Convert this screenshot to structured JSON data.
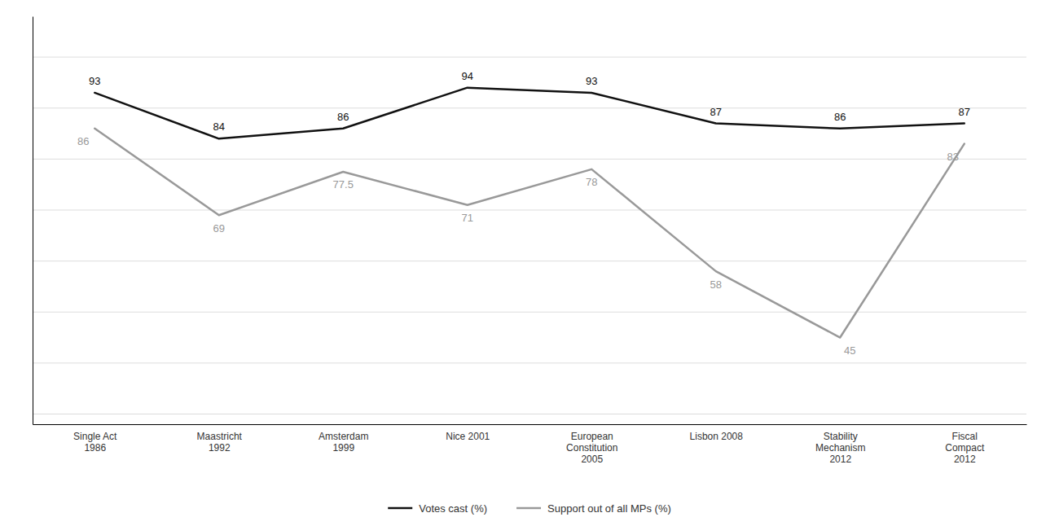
{
  "chart_data": {
    "type": "line",
    "categories": [
      "Single Act\n1986",
      "Maastricht\n1992",
      "Amsterdam\n1999",
      "Nice 2001",
      "European\nConstitution\n2005",
      "Lisbon 2008",
      "Stability\nMechanism\n2012",
      "Fiscal\nCompact\n2012"
    ],
    "series": [
      {
        "name": "Votes cast (%)",
        "color": "#111111",
        "values": [
          93,
          84,
          86,
          94,
          93,
          87,
          86,
          87
        ]
      },
      {
        "name": "Support out of all MPs (%)",
        "color": "#999999",
        "values": [
          86,
          69,
          77.5,
          71,
          78,
          58,
          45,
          83
        ]
      }
    ],
    "ylim": [
      28,
      108
    ],
    "yticks": [
      30,
      40,
      50,
      60,
      70,
      80,
      90,
      100
    ],
    "grid": true,
    "data_labels": true,
    "tick_labels": "x",
    "legend": "bottom"
  }
}
